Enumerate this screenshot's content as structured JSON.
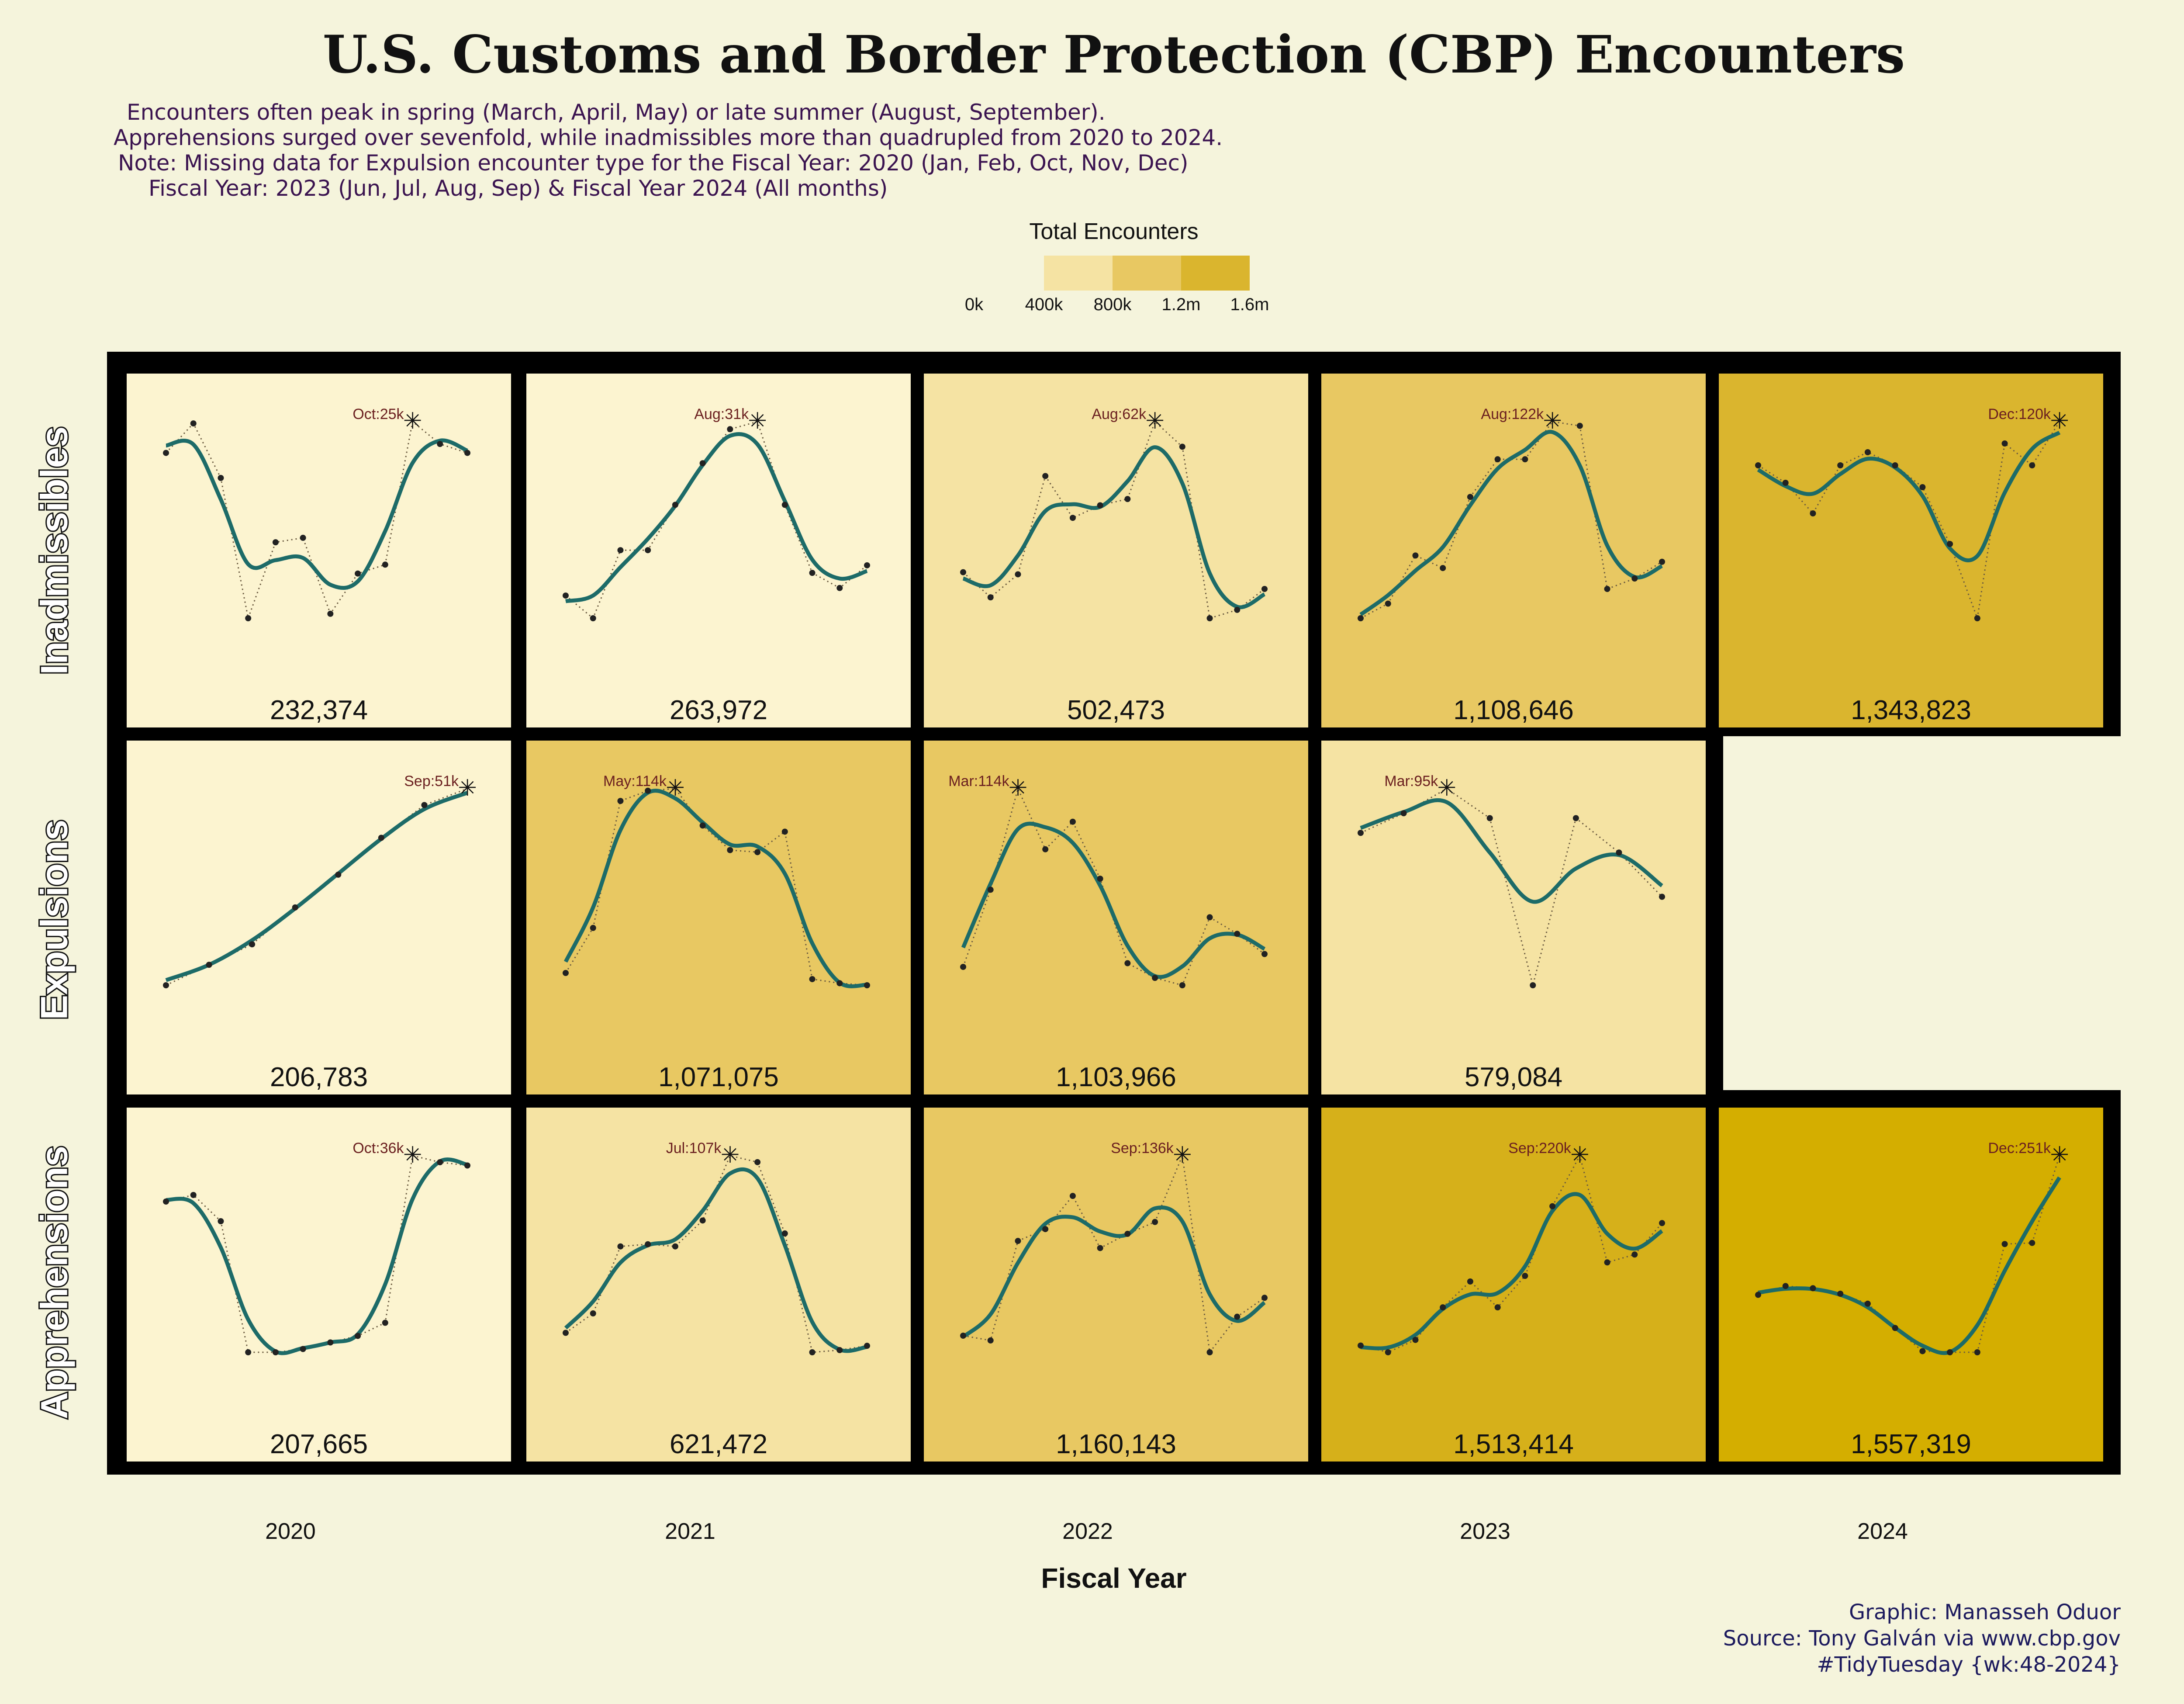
{
  "title": "U.S. Customs and Border Protection (CBP) Encounters",
  "subtitle": [
    "Encounters often peak in spring (March, April, May) or late summer (August, September).",
    "Apprehensions surged over sevenfold, while inadmissibles more than quadrupled from 2020 to 2024.",
    "Note: Missing data for Expulsion encounter type for the Fiscal Year: 2020 (Jan, Feb, Oct, Nov, Dec)",
    "Fiscal Year: 2023 (Jun, Jul, Aug, Sep) & Fiscal Year 2024 (All months)"
  ],
  "legend": {
    "title": "Total Encounters",
    "ticks": [
      "0k",
      "400k",
      "800k",
      "1.2m",
      "1.6m"
    ],
    "colors": [
      "#f5e3a3",
      "#e8c862",
      "#dab52e"
    ]
  },
  "colors": {
    "background": "#f5f4dc",
    "line": "#1d6b68",
    "points": "#222222",
    "annotation": "#6b2020"
  },
  "row_labels": [
    "Inadmissibles",
    "Expulsions",
    "Apprehensions"
  ],
  "col_labels": [
    "2020",
    "2021",
    "2022",
    "2023",
    "2024"
  ],
  "xlabel": "Fiscal Year",
  "caption": [
    "Graphic: Manasseh Oduor",
    "Source: Tony Galván via www.cbp.gov",
    "#TidyTuesday {wk:48-2024}"
  ],
  "chart_data": {
    "type": "line",
    "description_note": "Small multiples: rows = encounter type, columns = fiscal year; each panel shows monthly encounters (dotted points) with a smoothed trend line; panel fill encodes total encounters.",
    "panels": [
      {
        "type_label": "Inadmissibles",
        "year": "2020",
        "total": "232,374",
        "total_value": 232374,
        "fill": "#fcf4d0",
        "monthly_k": [
          21.5,
          24.8,
          18.7,
          3.0,
          11.5,
          12.0,
          3.5,
          8.0,
          9.0,
          25.0,
          22.5,
          21.5
        ],
        "peak_label": "Oct:25k",
        "peak_index": 9
      },
      {
        "type_label": "Inadmissibles",
        "year": "2021",
        "total": "263,972",
        "total_value": 263972,
        "fill": "#fcf4d0",
        "monthly_k": [
          8.0,
          5.0,
          14.0,
          14.0,
          20.0,
          25.5,
          30.0,
          31.0,
          20.0,
          11.0,
          9.0,
          12.0
        ],
        "peak_label": "Aug:31k",
        "peak_index": 7
      },
      {
        "type_label": "Inadmissibles",
        "year": "2022",
        "total": "502,473",
        "total_value": 502473,
        "fill": "#f5e3a3",
        "monthly_k": [
          26.0,
          20.0,
          25.5,
          49.0,
          39.0,
          42.0,
          43.5,
          62.0,
          56.0,
          15.0,
          17.0,
          22.0
        ],
        "peak_label": "Aug:62k",
        "peak_index": 7
      },
      {
        "type_label": "Inadmissibles",
        "year": "2023",
        "total": "1,108,646",
        "total_value": 1108646,
        "fill": "#e8c862",
        "monthly_k": [
          28.0,
          35.0,
          58.0,
          52.0,
          86.0,
          104.0,
          104.0,
          122.0,
          120.0,
          42.0,
          47.0,
          55.0
        ],
        "peak_label": "Aug:122k",
        "peak_index": 7
      },
      {
        "type_label": "Inadmissibles",
        "year": "2024",
        "total": "1,343,823",
        "total_value": 1343823,
        "fill": "#dab52e",
        "monthly_k": [
          110.0,
          106.0,
          99.0,
          110.0,
          113.0,
          110.0,
          105.0,
          92.0,
          75.0,
          115.0,
          110.0,
          120.0
        ],
        "peak_label": "Dec:120k",
        "peak_index": 11
      },
      {
        "type_label": "Expulsions",
        "year": "2020",
        "total": "206,783",
        "total_value": 206783,
        "fill": "#fcf4d0",
        "monthly_k": [
          3.0,
          8.0,
          13.0,
          22.0,
          30.0,
          39.0,
          47.0,
          51.0
        ],
        "peak_label": "Sep:51k",
        "peak_index": 7
      },
      {
        "type_label": "Expulsions",
        "year": "2021",
        "total": "1,071,075",
        "total_value": 1071075,
        "fill": "#e8c862",
        "monthly_k": [
          24.0,
          46.0,
          108.0,
          113.0,
          114.0,
          96.0,
          84.0,
          83.0,
          93.0,
          21.0,
          19.0,
          18.0
        ],
        "peak_label": "May:114k",
        "peak_index": 4
      },
      {
        "type_label": "Expulsions",
        "year": "2022",
        "total": "1,103,966",
        "total_value": 1103966,
        "fill": "#e8c862",
        "monthly_k": [
          17.0,
          59.0,
          114.0,
          81.0,
          96.0,
          65.0,
          19.0,
          11.0,
          7.0,
          44.0,
          35.0,
          24.0
        ],
        "peak_label": "Mar:114k",
        "peak_index": 2
      },
      {
        "type_label": "Expulsions",
        "year": "2023",
        "total": "579,084",
        "total_value": 579084,
        "fill": "#f5e3a3",
        "monthly_k": [
          86.0,
          90.0,
          95.0,
          89.0,
          55.0,
          89.0,
          82.0,
          73.0
        ],
        "peak_label": "Mar:95k",
        "peak_index": 2
      },
      {
        "type_label": "Apprehensions",
        "year": "2020",
        "total": "207,665",
        "total_value": 207665,
        "fill": "#fcf4d0",
        "monthly_k": [
          29.0,
          30.0,
          26.0,
          6.0,
          6.0,
          6.5,
          7.5,
          8.5,
          10.5,
          36.0,
          35.0,
          34.5
        ],
        "peak_label": "Oct:36k",
        "peak_index": 9
      },
      {
        "type_label": "Apprehensions",
        "year": "2021",
        "total": "621,472",
        "total_value": 621472,
        "fill": "#f5e3a3",
        "monthly_k": [
          25.0,
          34.0,
          65.0,
          66.0,
          65.0,
          77.0,
          107.0,
          104.0,
          71.0,
          16.0,
          17.0,
          19.0
        ],
        "peak_label": "Jul:107k",
        "peak_index": 6
      },
      {
        "type_label": "Apprehensions",
        "year": "2022",
        "total": "1,160,143",
        "total_value": 1160143,
        "fill": "#e8c862",
        "monthly_k": [
          60.0,
          58.0,
          100.0,
          105.0,
          119.0,
          97.0,
          103.0,
          108.0,
          136.0,
          53.0,
          68.0,
          76.0
        ],
        "peak_label": "Sep:136k",
        "peak_index": 8
      },
      {
        "type_label": "Apprehensions",
        "year": "2023",
        "total": "1,513,414",
        "total_value": 1513414,
        "fill": "#d6b01a",
        "monthly_k": [
          51.0,
          45.0,
          56.0,
          85.0,
          108.0,
          85.0,
          113.0,
          175.0,
          220.0,
          125.0,
          132.0,
          160.0
        ],
        "peak_label": "Sep:220k",
        "peak_index": 8
      },
      {
        "type_label": "Apprehensions",
        "year": "2024",
        "total": "1,557,319",
        "total_value": 1557319,
        "fill": "#d4ae00",
        "monthly_k": [
          125.0,
          133.0,
          131.0,
          126.0,
          117.0,
          95.0,
          74.0,
          73.0,
          73.0,
          171.0,
          172.0,
          251.0
        ],
        "peak_label": "Dec:251k",
        "peak_index": 11
      }
    ]
  }
}
